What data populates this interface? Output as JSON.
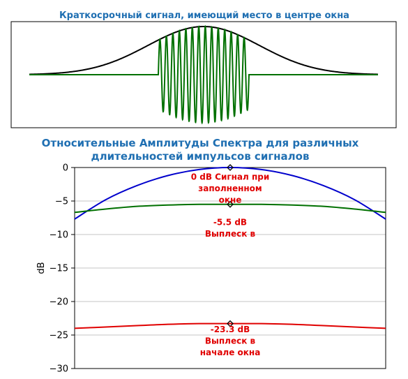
{
  "chart_data": [
    {
      "type": "line",
      "title": "Краткосрочный сигнал, имеющий место в центре окна",
      "xlabel": "",
      "ylabel": "",
      "ylim": [
        -1.1,
        1.1
      ],
      "series": [
        {
          "name": "",
          "kind": "gaussian-window",
          "color": "#000000",
          "x": [
            0,
            1
          ],
          "center": 0.5,
          "sigma": 0.16,
          "amplitude": 1.0,
          "baseline": 0
        },
        {
          "name": "",
          "kind": "burst",
          "color": "#007000",
          "x": [
            0,
            1
          ],
          "burst_start": 0.37,
          "burst_end": 0.63,
          "cycles": 14,
          "baseline": 0
        }
      ]
    },
    {
      "type": "line",
      "title": "Относительные Амплитуды Спектра для различных длительностей импульсов сигналов",
      "title_lines": [
        "Относительные Амплитуды Спектра для различных",
        "длительностей импульсов сигналов"
      ],
      "xlabel": "",
      "ylabel": "dB",
      "ylim": [
        -30,
        0
      ],
      "yticks": [
        0,
        -5,
        -10,
        -15,
        -20,
        -25,
        -30
      ],
      "ytick_labels": [
        "0",
        "−5",
        "−10",
        "−15",
        "−20",
        "−25",
        "−30"
      ],
      "grid": true,
      "x": [
        -1,
        -0.8,
        -0.6,
        -0.4,
        -0.2,
        0,
        0.2,
        0.4,
        0.6,
        0.8,
        1
      ],
      "series": [
        {
          "name": "",
          "color": "#0000cc",
          "values": [
            -7.7,
            -4.8,
            -2.7,
            -1.2,
            -0.3,
            0,
            -0.3,
            -1.2,
            -2.7,
            -4.8,
            -7.7
          ]
        },
        {
          "name": "",
          "color": "#007000",
          "values": [
            -6.7,
            -6.2,
            -5.8,
            -5.6,
            -5.5,
            -5.5,
            -5.5,
            -5.6,
            -5.8,
            -6.2,
            -6.7
          ]
        },
        {
          "name": "",
          "color": "#e00000",
          "values": [
            -24.0,
            -23.8,
            -23.6,
            -23.4,
            -23.3,
            -23.3,
            -23.3,
            -23.4,
            -23.6,
            -23.8,
            -24.0
          ]
        }
      ],
      "markers": [
        {
          "x": 0,
          "y": 0
        },
        {
          "x": 0,
          "y": -5.5
        },
        {
          "x": 0,
          "y": -23.3
        }
      ],
      "annotations": [
        {
          "lines": [
            "0 dB Сигнал при",
            "заполненном",
            "окне"
          ],
          "x": 0,
          "y": -1.8
        },
        {
          "lines": [
            "-5.5 dB",
            "Выплеск в"
          ],
          "x": 0,
          "y": -8.6
        },
        {
          "lines": [
            "-23.3 dB",
            "Выплеск в",
            "начале окна"
          ],
          "x": 0,
          "y": -24.6
        }
      ]
    }
  ]
}
